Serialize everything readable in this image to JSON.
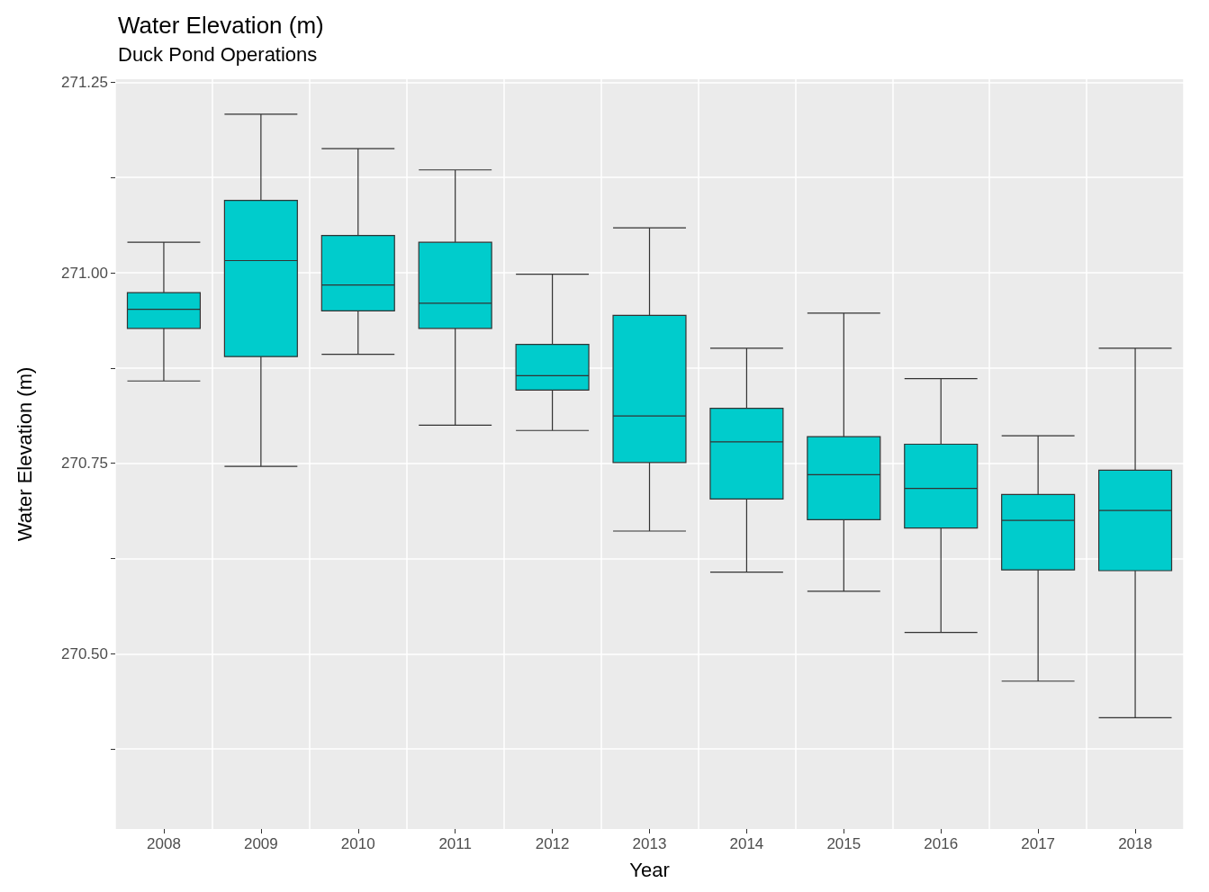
{
  "chart_data": {
    "type": "box",
    "title": "Water Elevation (m)",
    "subtitle": "Duck Pond Operations",
    "xlabel": "Year",
    "ylabel": "Water Elevation (m)",
    "categories": [
      "2008",
      "2009",
      "2010",
      "2011",
      "2012",
      "2013",
      "2014",
      "2015",
      "2016",
      "2017",
      "2018"
    ],
    "series": [
      {
        "color": "#00cccc",
        "boxes": [
          {
            "low": 270.858,
            "q1": 270.927,
            "median": 270.952,
            "q3": 270.974,
            "high": 271.04
          },
          {
            "low": 270.746,
            "q1": 270.89,
            "median": 271.016,
            "q3": 271.095,
            "high": 271.208
          },
          {
            "low": 270.893,
            "q1": 270.95,
            "median": 270.984,
            "q3": 271.049,
            "high": 271.163
          },
          {
            "low": 270.8,
            "q1": 270.927,
            "median": 270.96,
            "q3": 271.04,
            "high": 271.135
          },
          {
            "low": 270.793,
            "q1": 270.846,
            "median": 270.865,
            "q3": 270.906,
            "high": 270.998
          },
          {
            "low": 270.661,
            "q1": 270.751,
            "median": 270.812,
            "q3": 270.944,
            "high": 271.059
          },
          {
            "low": 270.607,
            "q1": 270.703,
            "median": 270.778,
            "q3": 270.822,
            "high": 270.901
          },
          {
            "low": 270.582,
            "q1": 270.676,
            "median": 270.735,
            "q3": 270.785,
            "high": 270.947
          },
          {
            "low": 270.528,
            "q1": 270.665,
            "median": 270.717,
            "q3": 270.775,
            "high": 270.861
          },
          {
            "low": 270.464,
            "q1": 270.61,
            "median": 270.675,
            "q3": 270.709,
            "high": 270.786
          },
          {
            "low": 270.416,
            "q1": 270.609,
            "median": 270.688,
            "q3": 270.741,
            "high": 270.901
          }
        ]
      }
    ],
    "ylim": [
      270.27,
      271.254
    ],
    "yticks": [
      {
        "value": 270.375,
        "label": null
      },
      {
        "value": 270.5,
        "label": "270.50"
      },
      {
        "value": 270.625,
        "label": null
      },
      {
        "value": 270.75,
        "label": "270.75"
      },
      {
        "value": 270.875,
        "label": null
      },
      {
        "value": 271,
        "label": "271.00"
      },
      {
        "value": 271.125,
        "label": null
      },
      {
        "value": 271.25,
        "label": "271.25"
      }
    ],
    "grid": true
  }
}
